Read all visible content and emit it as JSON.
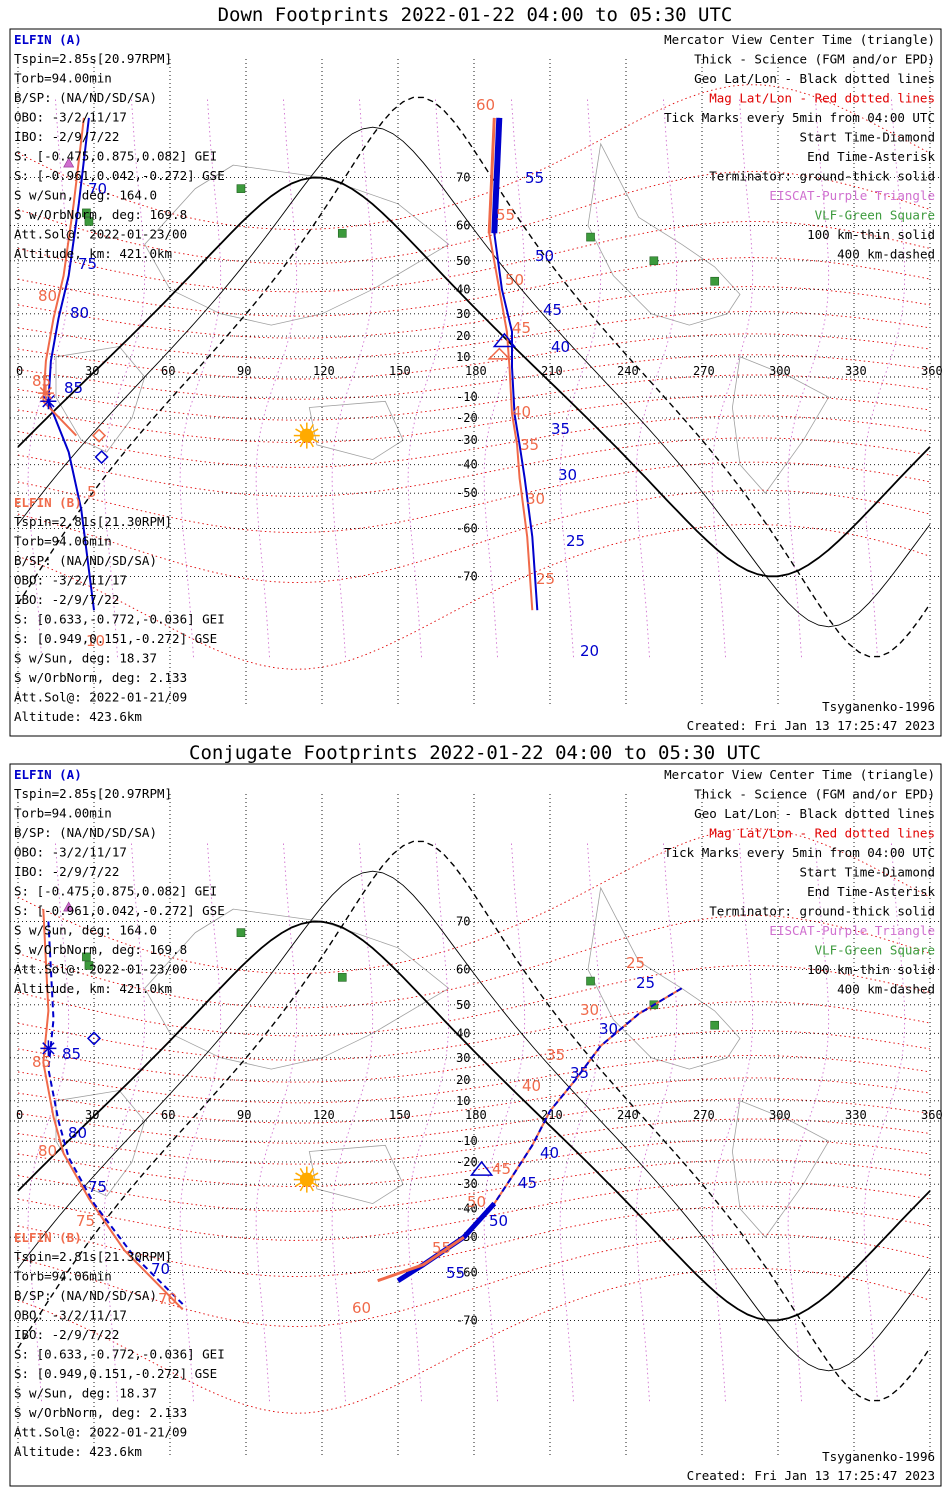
{
  "panels": [
    {
      "id": "down",
      "title": "Down Footprints 2022-01-22 04:00 to 05:30 UTC",
      "elfin_a": {
        "label": "ELFIN (A)",
        "lines": [
          "Tspin=2.85s[20.97RPM]",
          "Torb=94.00min",
          "B/SP: (NA/ND/SD/SA)",
          "OBO: -3/2/11/17",
          "IBO: -2/9/7/22",
          "S: [-0.475,0.875,0.082] GEI",
          "S: [-0.961,0.042,-0.272] GSE",
          "S w/Sun, deg: 164.0",
          "S w/OrbNorm, deg: 169.8",
          "Att.Sol@: 2022-01-23/00",
          "Altitude, km: 421.0km"
        ]
      },
      "elfin_b": {
        "label": "ELFIN (B)",
        "lines": [
          "Tspin=2.81s[21.30RPM]",
          "Torb=94.06min",
          "B/SP: (NA/ND/SD/SA)",
          "OBO: -3/2/11/17",
          "IBO: -2/9/7/22",
          "S: [0.633,-0.772,-0.036] GEI",
          "S: [0.949,0.151,-0.272] GSE",
          "S w/Sun, deg: 18.37",
          "S w/OrbNorm, deg: 2.133",
          "Att.Sol@: 2022-01-21/09",
          "Altitude: 423.6km"
        ]
      },
      "legend": [
        "Mercator View Center Time (triangle)",
        "Thick - Science (FGM and/or EPD)",
        "Geo Lat/Lon - Black dotted lines",
        "Mag Lat/Lon - Red dotted lines",
        "Tick Marks every 5min from 04:00 UTC",
        "Start Time-Diamond",
        "End Time-Asterisk",
        "Terminator: ground-thick solid",
        "EISCAT-Purple Triangle",
        "VLF-Green Square",
        "100 km-thin solid",
        "400 km-dashed"
      ],
      "model": "Tsyganenko-1996",
      "created": "Created: Fri Jan 13 17:25:47 2023",
      "ticks_a": [
        "55",
        "50",
        "45",
        "40",
        "35",
        "30",
        "25",
        "20",
        "70",
        "75",
        "80",
        "85"
      ],
      "ticks_b": [
        "60",
        "55",
        "50",
        "45",
        "40",
        "35",
        "30",
        "25",
        "80",
        "85",
        "5",
        "10"
      ]
    },
    {
      "id": "conj",
      "title": "Conjugate Footprints 2022-01-22 04:00 to 05:30 UTC",
      "elfin_a": {
        "label": "ELFIN (A)",
        "lines": [
          "Tspin=2.85s[20.97RPM]",
          "Torb=94.00min",
          "B/SP: (NA/ND/SD/SA)",
          "OBO: -3/2/11/17",
          "IBO: -2/9/7/22",
          "S: [-0.475,0.875,0.082] GEI",
          "S: [-0.961,0.042,-0.272] GSE",
          "S w/Sun, deg: 164.0",
          "S w/OrbNorm, deg: 169.8",
          "Att.Sol@: 2022-01-23/00",
          "Altitude, km: 421.0km"
        ]
      },
      "elfin_b": {
        "label": "ELFIN (B)",
        "lines": [
          "Tspin=2.81s[21.30RPM]",
          "Torb=94.06min",
          "B/SP: (NA/ND/SD/SA)",
          "OBO: -3/2/11/17",
          "IBO: -2/9/7/22",
          "S: [0.633,-0.772,-0.036] GEI",
          "S: [0.949,0.151,-0.272] GSE",
          "S w/Sun, deg: 18.37",
          "S w/OrbNorm, deg: 2.133",
          "Att.Sol@: 2022-01-21/09",
          "Altitude: 423.6km"
        ]
      },
      "legend": [
        "Mercator View Center Time (triangle)",
        "Thick - Science (FGM and/or EPD)",
        "Geo Lat/Lon - Black dotted lines",
        "Mag Lat/Lon - Red dotted lines",
        "Tick Marks every 5min from 04:00 UTC",
        "Start Time-Diamond",
        "End Time-Asterisk",
        "Terminator: ground-thick solid",
        "EISCAT-Purple Triangle",
        "VLF-Green Square",
        "100 km-thin solid",
        "400 km-dashed"
      ],
      "model": "Tsyganenko-1996",
      "created": "Created: Fri Jan 13 17:25:47 2023",
      "ticks_a": [
        "25",
        "30",
        "35",
        "40",
        "45",
        "50",
        "55",
        "85",
        "80",
        "75",
        "70"
      ],
      "ticks_b": [
        "25",
        "30",
        "35",
        "40",
        "45",
        "50",
        "55",
        "60",
        "85",
        "80",
        "75",
        "70"
      ]
    }
  ],
  "colors": {
    "elfin_a": "#0000cc",
    "elfin_b": "#f06a4a",
    "mag_grid": "#e00000",
    "geo_grid": "#000000",
    "eiscat": "#d070d0",
    "vlf": "#3c9a3c",
    "coast": "#a0a0a0",
    "sun": "#ffaa00"
  },
  "chart_data": [
    {
      "type": "scatter",
      "title": "Down Footprints 2022-01-22 04:00 to 05:30 UTC",
      "xlabel": "",
      "ylabel": "",
      "x_ticks": [
        0,
        30,
        60,
        90,
        120,
        150,
        180,
        210,
        240,
        270,
        300,
        330,
        360
      ],
      "y_ticks": [
        70,
        60,
        50,
        40,
        30,
        20,
        10,
        -10,
        -20,
        -30,
        -40,
        -50,
        -60,
        -70
      ],
      "xlim": [
        0,
        360
      ],
      "ylim": [
        -80,
        80
      ],
      "series": [
        {
          "name": "ELFIN (A)",
          "color": "#0000cc",
          "points": [
            [
              190,
              78
            ],
            [
              188,
              58
            ],
            [
              191,
              40
            ],
            [
              195,
              22
            ],
            [
              195,
              5
            ],
            [
              196,
              -18
            ],
            [
              198,
              -32
            ],
            [
              200,
              -45
            ],
            [
              203,
              -62
            ],
            [
              205,
              -75
            ],
            [
              28,
              78
            ],
            [
              24,
              65
            ],
            [
              20,
              45
            ],
            [
              16,
              28
            ],
            [
              13,
              8
            ],
            [
              12,
              -12
            ],
            [
              20,
              -35
            ],
            [
              25,
              -55
            ],
            [
              30,
              -75
            ]
          ]
        },
        {
          "name": "ELFIN (B)",
          "color": "#f06a4a",
          "points": [
            [
              188,
              78
            ],
            [
              186,
              58
            ],
            [
              190,
              40
            ],
            [
              193,
              22
            ],
            [
              194,
              5
            ],
            [
              195,
              -18
            ],
            [
              197,
              -32
            ],
            [
              198,
              -45
            ],
            [
              201,
              -62
            ],
            [
              203,
              -75
            ],
            [
              26,
              78
            ],
            [
              22,
              65
            ],
            [
              18,
              45
            ],
            [
              14,
              28
            ],
            [
              11,
              8
            ],
            [
              10,
              -12
            ],
            [
              23,
              -28
            ]
          ]
        }
      ],
      "vlf_sites": [
        [
          88,
          68
        ],
        [
          27,
          63
        ],
        [
          128,
          58
        ],
        [
          226,
          57
        ],
        [
          251,
          50
        ],
        [
          275,
          43
        ],
        [
          28,
          61
        ]
      ],
      "sun": [
        114,
        -28
      ]
    },
    {
      "type": "scatter",
      "title": "Conjugate Footprints 2022-01-22 04:00 to 05:30 UTC",
      "xlabel": "",
      "ylabel": "",
      "x_ticks": [
        0,
        30,
        60,
        90,
        120,
        150,
        180,
        210,
        240,
        270,
        300,
        330,
        360
      ],
      "y_ticks": [
        70,
        60,
        50,
        40,
        30,
        20,
        10,
        -10,
        -20,
        -30,
        -40,
        -50,
        -60,
        -70
      ],
      "xlim": [
        0,
        360
      ],
      "ylim": [
        -80,
        80
      ],
      "series": [
        {
          "name": "ELFIN (A)",
          "color": "#0000cc",
          "points": [
            [
              262,
              55
            ],
            [
              245,
              47
            ],
            [
              230,
              35
            ],
            [
              220,
              20
            ],
            [
              210,
              5
            ],
            [
              203,
              -12
            ],
            [
              196,
              -25
            ],
            [
              188,
              -38
            ],
            [
              176,
              -50
            ],
            [
              160,
              -58
            ],
            [
              150,
              -62
            ]
          ]
        },
        {
          "name": "ELFIN (B)",
          "color": "#f06a4a",
          "points": [
            [
              262,
              55
            ],
            [
              245,
              47
            ],
            [
              230,
              35
            ],
            [
              220,
              20
            ],
            [
              210,
              5
            ],
            [
              203,
              -12
            ],
            [
              196,
              -25
            ],
            [
              188,
              -38
            ],
            [
              176,
              -50
            ],
            [
              160,
              -58
            ],
            [
              142,
              -62
            ]
          ]
        }
      ],
      "vlf_sites": [
        [
          88,
          68
        ],
        [
          27,
          63
        ],
        [
          128,
          58
        ],
        [
          226,
          57
        ],
        [
          251,
          50
        ],
        [
          275,
          43
        ],
        [
          28,
          61
        ]
      ],
      "sun": [
        114,
        -28
      ]
    }
  ]
}
